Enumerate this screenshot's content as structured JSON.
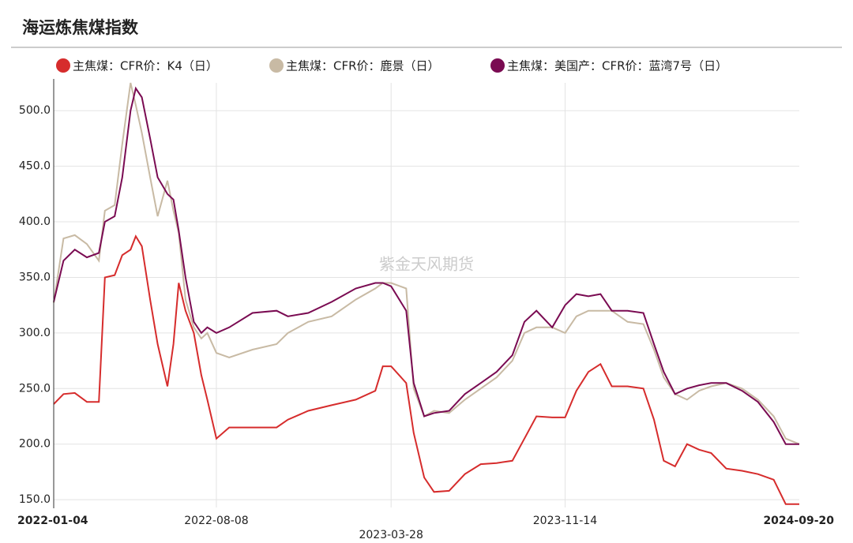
{
  "chart_data": {
    "type": "line",
    "title": "海运炼焦煤指数",
    "annotation": "紫金天风期货",
    "x": [
      "2022-01-04",
      "2022-01-17",
      "2022-02-01",
      "2022-02-17",
      "2022-03-05",
      "2022-03-13",
      "2022-03-26",
      "2022-04-05",
      "2022-04-16",
      "2022-04-23",
      "2022-05-01",
      "2022-05-12",
      "2022-05-22",
      "2022-06-04",
      "2022-06-12",
      "2022-06-19",
      "2022-06-28",
      "2022-07-09",
      "2022-07-19",
      "2022-07-27",
      "2022-08-08",
      "2022-08-25",
      "2022-09-25",
      "2022-10-27",
      "2022-11-11",
      "2022-12-08",
      "2023-01-08",
      "2023-02-09",
      "2023-03-07",
      "2023-03-17",
      "2023-03-28",
      "2023-04-17",
      "2023-04-27",
      "2023-05-11",
      "2023-05-24",
      "2023-06-13",
      "2023-07-04",
      "2023-07-25",
      "2023-08-15",
      "2023-09-05",
      "2023-09-21",
      "2023-10-07",
      "2023-10-28",
      "2023-11-14",
      "2023-11-29",
      "2023-12-15",
      "2023-12-31",
      "2024-01-15",
      "2024-02-05",
      "2024-02-26",
      "2024-03-11",
      "2024-03-24",
      "2024-04-08",
      "2024-04-24",
      "2024-05-10",
      "2024-05-26",
      "2024-06-15",
      "2024-07-06",
      "2024-07-27",
      "2024-08-17",
      "2024-09-02",
      "2024-09-20"
    ],
    "series": [
      {
        "name": "主焦煤：CFR价：K4（日）",
        "color": "#d62c2c",
        "values": [
          236,
          245,
          246,
          238,
          238,
          350,
          352,
          370,
          375,
          387,
          378,
          330,
          290,
          252,
          290,
          345,
          320,
          300,
          262,
          240,
          205,
          215,
          215,
          215,
          222,
          230,
          235,
          240,
          248,
          270,
          270,
          255,
          210,
          170,
          157,
          158,
          173,
          182,
          183,
          185,
          205,
          225,
          224,
          224,
          248,
          265,
          272,
          252,
          252,
          250,
          222,
          185,
          180,
          200,
          195,
          192,
          178,
          176,
          173,
          168,
          146,
          146
        ]
      },
      {
        "name": "主焦煤：CFR价：鹿景（日）",
        "color": "#c8baa4",
        "values": [
          327,
          385,
          388,
          380,
          365,
          410,
          415,
          470,
          525,
          505,
          480,
          440,
          405,
          437,
          410,
          390,
          330,
          305,
          295,
          300,
          282,
          278,
          285,
          290,
          300,
          310,
          315,
          330,
          340,
          345,
          345,
          340,
          250,
          225,
          230,
          228,
          240,
          250,
          260,
          275,
          300,
          305,
          305,
          300,
          315,
          320,
          320,
          320,
          310,
          308,
          285,
          260,
          245,
          240,
          248,
          252,
          255,
          250,
          240,
          225,
          205,
          200
        ]
      },
      {
        "name": "主焦煤：美国产：CFR价：蓝湾7号（日）",
        "color": "#7a0b52",
        "values": [
          328,
          365,
          375,
          368,
          372,
          400,
          405,
          440,
          500,
          520,
          512,
          475,
          440,
          425,
          420,
          392,
          350,
          310,
          300,
          305,
          300,
          305,
          318,
          320,
          315,
          318,
          328,
          340,
          345,
          345,
          342,
          320,
          255,
          225,
          228,
          230,
          245,
          255,
          265,
          280,
          310,
          320,
          305,
          325,
          335,
          333,
          335,
          320,
          320,
          318,
          290,
          265,
          245,
          250,
          253,
          255,
          255,
          248,
          238,
          220,
          200,
          200
        ]
      }
    ],
    "xlim": [
      "2022-01-04",
      "2024-09-20"
    ],
    "xticks": [
      "2022-01-04",
      "2022-08-08",
      "2023-03-28",
      "2023-11-14",
      "2024-09-20"
    ],
    "ylim": [
      143,
      525
    ],
    "yticks": [
      {
        "value": 150,
        "label": "150.0"
      },
      {
        "value": 200,
        "label": "200.0"
      },
      {
        "value": 250,
        "label": "250.0"
      },
      {
        "value": 300,
        "label": "300.0"
      },
      {
        "value": 350,
        "label": "350.0"
      },
      {
        "value": 400,
        "label": "400.0"
      },
      {
        "value": 450,
        "label": "450.0"
      },
      {
        "value": 500,
        "label": "500.0"
      }
    ],
    "grid": true
  }
}
